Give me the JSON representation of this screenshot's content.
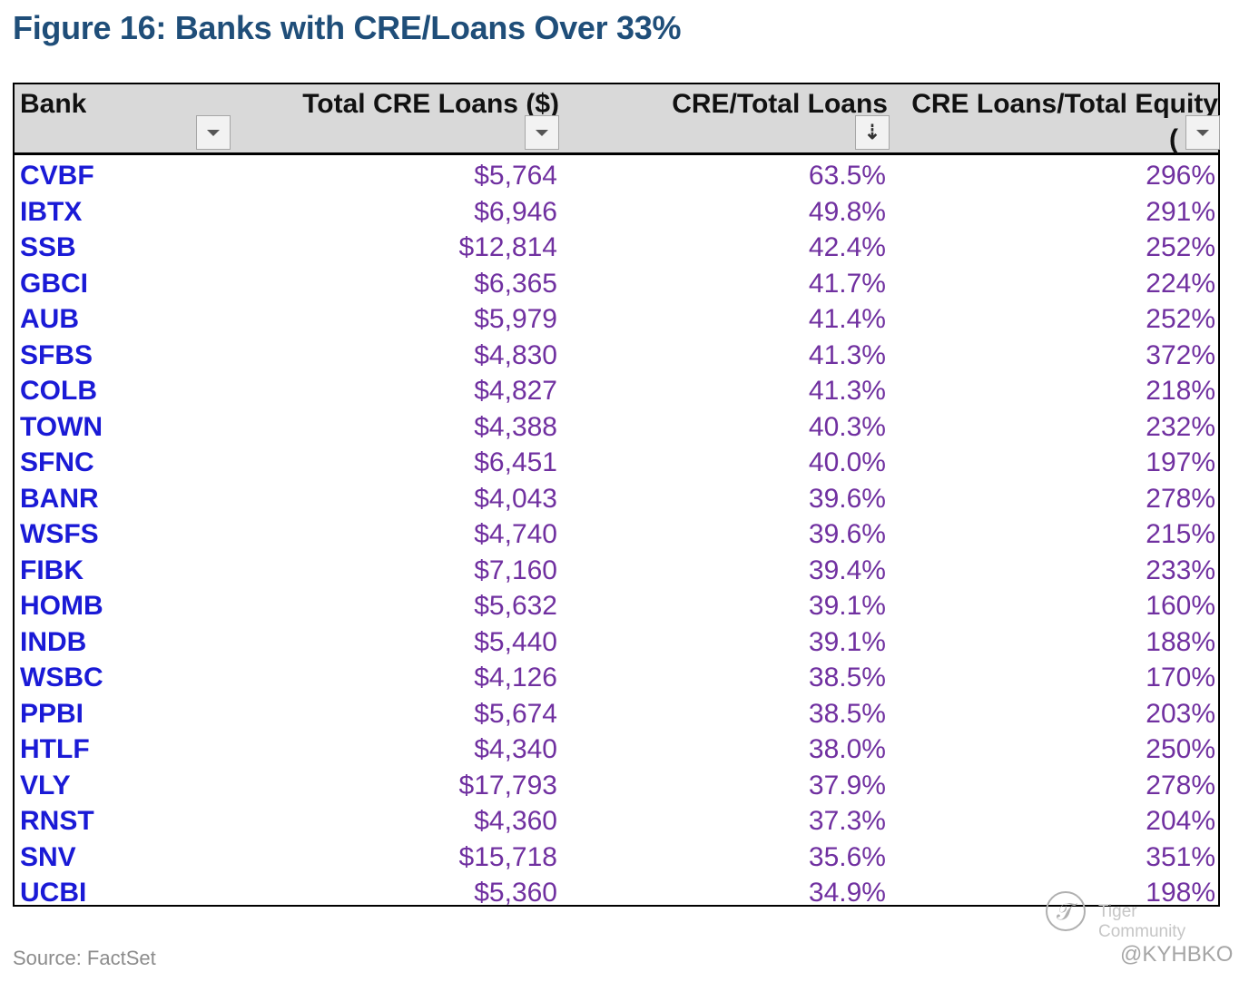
{
  "title": "Figure 16: Banks with CRE/Loans Over 33%",
  "header": {
    "bank": "Bank",
    "cre_loans": "Total CRE Loans ($)",
    "cre_ratio": "CRE/Total Loans",
    "cre_equity": "CRE Loans/Total Equity",
    "equity_paren": "("
  },
  "filter_icons": {
    "bank": "dropdown-arrow",
    "cre_loans": "dropdown-arrow",
    "cre_ratio": "sort-descending",
    "cre_equity": "dropdown-arrow"
  },
  "sort_glyph": "⇣",
  "rows": [
    {
      "bank": "CVBF",
      "cre": "$5,764",
      "ratio": "63.5%",
      "equity": "296%"
    },
    {
      "bank": "IBTX",
      "cre": "$6,946",
      "ratio": "49.8%",
      "equity": "291%"
    },
    {
      "bank": "SSB",
      "cre": "$12,814",
      "ratio": "42.4%",
      "equity": "252%"
    },
    {
      "bank": "GBCI",
      "cre": "$6,365",
      "ratio": "41.7%",
      "equity": "224%"
    },
    {
      "bank": "AUB",
      "cre": "$5,979",
      "ratio": "41.4%",
      "equity": "252%"
    },
    {
      "bank": "SFBS",
      "cre": "$4,830",
      "ratio": "41.3%",
      "equity": "372%"
    },
    {
      "bank": "COLB",
      "cre": "$4,827",
      "ratio": "41.3%",
      "equity": "218%"
    },
    {
      "bank": "TOWN",
      "cre": "$4,388",
      "ratio": "40.3%",
      "equity": "232%"
    },
    {
      "bank": "SFNC",
      "cre": "$6,451",
      "ratio": "40.0%",
      "equity": "197%"
    },
    {
      "bank": "BANR",
      "cre": "$4,043",
      "ratio": "39.6%",
      "equity": "278%"
    },
    {
      "bank": "WSFS",
      "cre": "$4,740",
      "ratio": "39.6%",
      "equity": "215%"
    },
    {
      "bank": "FIBK",
      "cre": "$7,160",
      "ratio": "39.4%",
      "equity": "233%"
    },
    {
      "bank": "HOMB",
      "cre": "$5,632",
      "ratio": "39.1%",
      "equity": "160%"
    },
    {
      "bank": "INDB",
      "cre": "$5,440",
      "ratio": "39.1%",
      "equity": "188%"
    },
    {
      "bank": "WSBC",
      "cre": "$4,126",
      "ratio": "38.5%",
      "equity": "170%"
    },
    {
      "bank": "PPBI",
      "cre": "$5,674",
      "ratio": "38.5%",
      "equity": "203%"
    },
    {
      "bank": "HTLF",
      "cre": "$4,340",
      "ratio": "38.0%",
      "equity": "250%"
    },
    {
      "bank": "VLY",
      "cre": "$17,793",
      "ratio": "37.9%",
      "equity": "278%"
    },
    {
      "bank": "RNST",
      "cre": "$4,360",
      "ratio": "37.3%",
      "equity": "204%"
    },
    {
      "bank": "SNV",
      "cre": "$15,718",
      "ratio": "35.6%",
      "equity": "351%"
    },
    {
      "bank": "UCBI",
      "cre": "$5,360",
      "ratio": "34.9%",
      "equity": "198%"
    }
  ],
  "source": "Source: FactSet",
  "watermark": "Tiger Community",
  "handle": "@KYHBKO",
  "colors": {
    "title": "#1f4e79",
    "bank_text": "#1a1ad6",
    "value_text": "#7030a0",
    "header_bg": "#d9d9d9"
  }
}
